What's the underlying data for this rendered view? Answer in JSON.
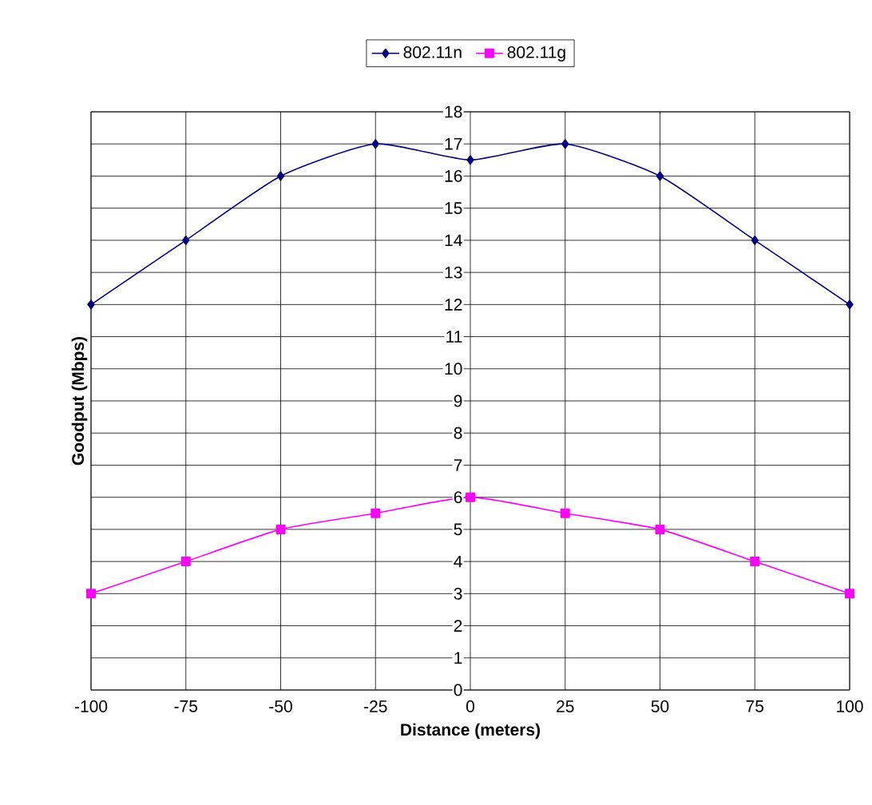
{
  "chart_data": {
    "type": "line",
    "xlabel": "Distance (meters)",
    "ylabel": "Goodput (Mbps)",
    "x": [
      -100,
      -75,
      -50,
      -25,
      0,
      25,
      50,
      75,
      100
    ],
    "series": [
      {
        "name": "802.11n",
        "color": "#000080",
        "marker": "diamond",
        "values": [
          12,
          14,
          16,
          17,
          16.5,
          17,
          16,
          14,
          12
        ]
      },
      {
        "name": "802.11g",
        "color": "#ff00ff",
        "marker": "square",
        "values": [
          3,
          4,
          5,
          5.5,
          6,
          5.5,
          5,
          4,
          3
        ]
      }
    ],
    "xlim": [
      -100,
      100
    ],
    "xticks": [
      -100,
      -75,
      -50,
      -25,
      0,
      25,
      50,
      75,
      100
    ],
    "ylim": [
      0,
      18
    ],
    "yticks": [
      0,
      1,
      2,
      3,
      4,
      5,
      6,
      7,
      8,
      9,
      10,
      11,
      12,
      13,
      14,
      15,
      16,
      17,
      18
    ],
    "grid": true,
    "legend": "top",
    "line_style": "solid"
  }
}
